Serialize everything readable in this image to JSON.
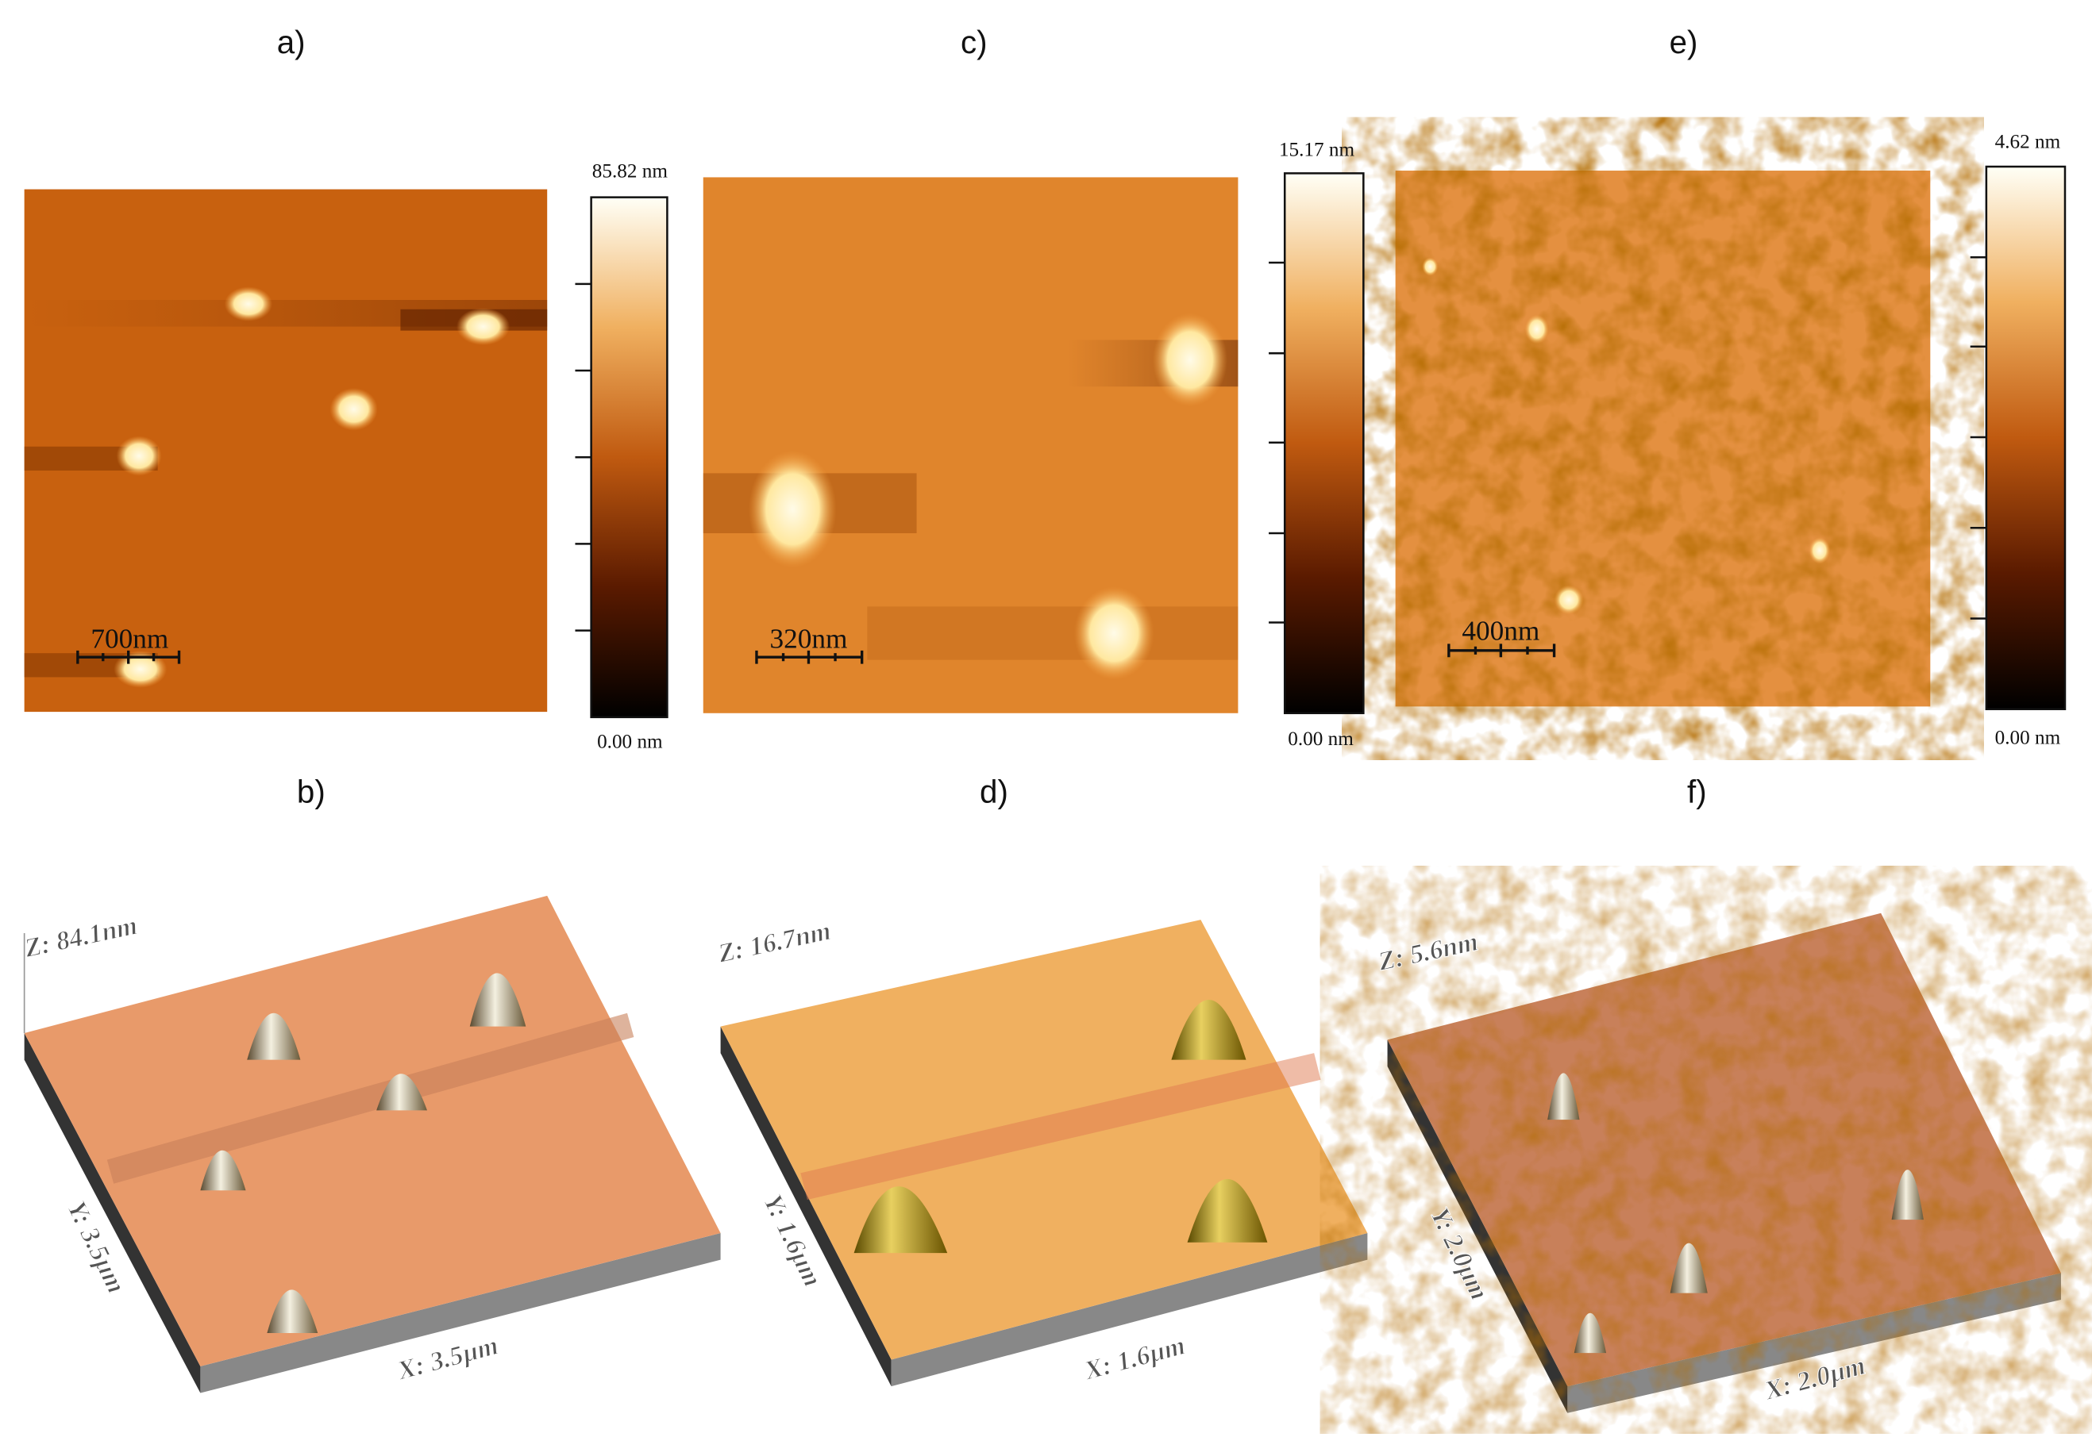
{
  "panels": [
    {
      "label": "a)",
      "scale_bar": "700nm",
      "colorbar_max": "85.82 nm",
      "colorbar_min": "0.00 nm"
    },
    {
      "label": "b)",
      "z_label": "Z: 84.1nm",
      "y_label": "Y: 3.5µm",
      "x_label": "X: 3.5µm"
    },
    {
      "label": "c)",
      "scale_bar": "320nm",
      "colorbar_max": "15.17 nm",
      "colorbar_min": "0.00 nm"
    },
    {
      "label": "d)",
      "z_label": "Z: 16.7nm",
      "y_label": "Y: 1.6µm",
      "x_label": "X: 1.6µm"
    },
    {
      "label": "e)",
      "scale_bar": "400nm",
      "colorbar_max": "4.62 nm",
      "colorbar_min": "0.00 nm"
    },
    {
      "label": "f)",
      "z_label": "Z: 5.6nm",
      "y_label": "Y: 2.0µm",
      "x_label": "X: 2.0µm"
    }
  ]
}
